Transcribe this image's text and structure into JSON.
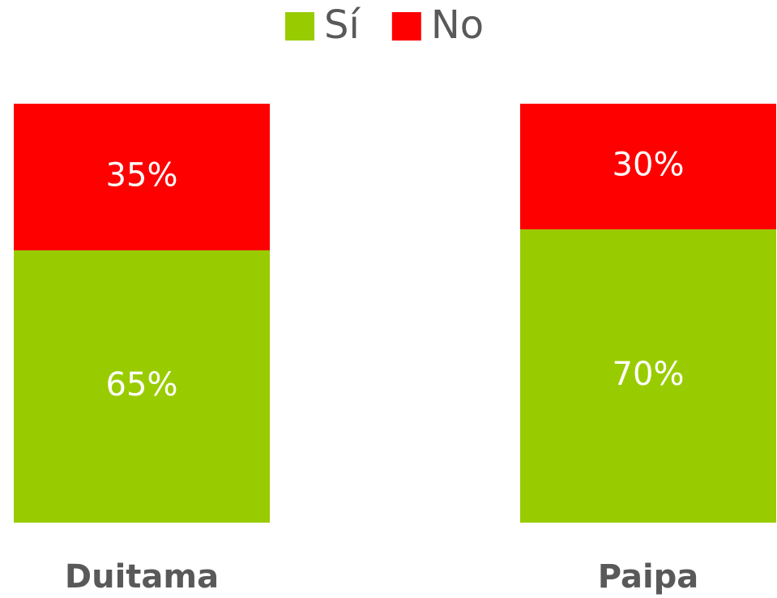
{
  "chart_data": {
    "type": "stacked_bar",
    "categories": [
      "Duitama",
      "Paipa"
    ],
    "series": [
      {
        "name": "Sí",
        "color": "#99cc00",
        "values": [
          65,
          70
        ],
        "value_labels": [
          "65%",
          "70%"
        ]
      },
      {
        "name": "No",
        "color": "#ff0000",
        "values": [
          35,
          30
        ],
        "value_labels": [
          "35%",
          "30%"
        ]
      }
    ],
    "ylim": [
      0,
      100
    ],
    "legend": "top"
  }
}
